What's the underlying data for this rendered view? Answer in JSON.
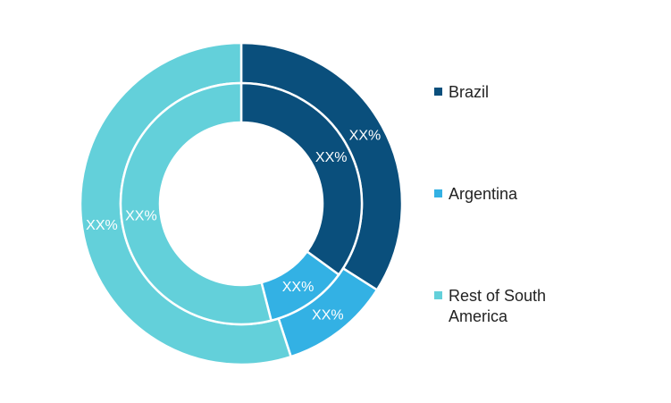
{
  "chart_data": {
    "type": "pie",
    "variant": "double-donut",
    "title": "",
    "categories": [
      "Brazil",
      "Argentina",
      "Rest of South America"
    ],
    "colors": [
      "#0a4f7c",
      "#33b1e4",
      "#63d0da"
    ],
    "series": [
      {
        "values": [
          34,
          11,
          55
        ],
        "labels": [
          "XX%",
          "XX%",
          "XX%"
        ]
      },
      {
        "values": [
          35,
          11,
          54
        ],
        "labels": [
          "XX%",
          "XX%",
          "XX%"
        ]
      }
    ],
    "legend_position": "right"
  },
  "legend": {
    "items": [
      {
        "label": "Brazil",
        "color": "#0a4f7c"
      },
      {
        "label": "Argentina",
        "color": "#33b1e4"
      },
      {
        "label": "Rest of South America",
        "color": "#63d0da"
      }
    ]
  }
}
